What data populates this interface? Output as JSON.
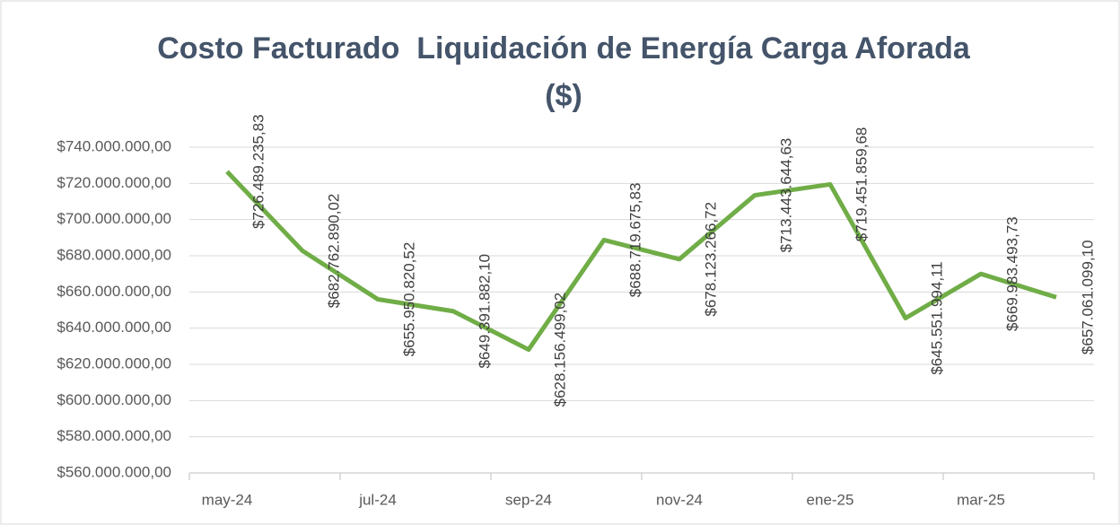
{
  "chart_data": {
    "type": "line",
    "title": [
      "Costo Facturado  Liquidación de Energía Carga Aforada",
      "($)"
    ],
    "categories": [
      "may-24",
      null,
      "jul-24",
      null,
      "sep-24",
      null,
      "nov-24",
      null,
      "ene-25",
      null,
      "mar-25",
      null
    ],
    "series": [
      {
        "name": "Costo Facturado",
        "color": "#70ad47",
        "values": [
          726489235.83,
          682762890.02,
          655950820.52,
          649391882.1,
          628156499.02,
          688719675.83,
          678123266.72,
          713443644.63,
          719451859.68,
          645551994.11,
          669983493.73,
          657061099.1
        ],
        "value_labels": [
          "$726.489.235,83",
          "$682.762.890,02",
          "$655.950.820,52",
          "$649.391.882,10",
          "$628.156.499,02",
          "$688.719.675,83",
          "$678.123.266,72",
          "$713.443.644,63",
          "$719.451.859,68",
          "$645.551.994,11",
          "$669.983.493,73",
          "$657.061.099,10"
        ]
      }
    ],
    "ylim": [
      560000000,
      740000000
    ],
    "yticks": [
      {
        "value": 560000000,
        "label": "$560.000.000,00"
      },
      {
        "value": 580000000,
        "label": "$580.000.000,00"
      },
      {
        "value": 600000000,
        "label": "$600.000.000,00"
      },
      {
        "value": 620000000,
        "label": "$620.000.000,00"
      },
      {
        "value": 640000000,
        "label": "$640.000.000,00"
      },
      {
        "value": 660000000,
        "label": "$660.000.000,00"
      },
      {
        "value": 680000000,
        "label": "$680.000.000,00"
      },
      {
        "value": 700000000,
        "label": "$700.000.000,00"
      },
      {
        "value": 720000000,
        "label": "$720.000.000,00"
      },
      {
        "value": 740000000,
        "label": "$740.000.000,00"
      }
    ],
    "grid": true
  }
}
